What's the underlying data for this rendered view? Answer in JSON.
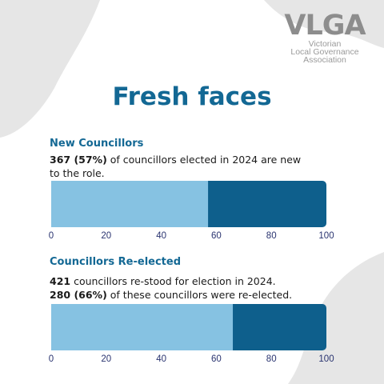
{
  "logo": {
    "mark": "VLGA",
    "line1": "Victorian",
    "line2": "Local Governance",
    "line3": "Association"
  },
  "title": "Fresh faces",
  "sections": [
    {
      "heading": "New Councillors",
      "lines": [
        {
          "bold": "367 (57%)",
          "text": " of councillors elected in 2024 are new"
        },
        {
          "bold": "",
          "text": "to the role."
        }
      ]
    },
    {
      "heading": "Councillors Re-elected",
      "lines": [
        {
          "bold": "421",
          "text": " councillors re-stood for election in 2024."
        },
        {
          "bold": "280 (66%)",
          "text": " of these councillors were re-elected."
        }
      ]
    }
  ],
  "colors": {
    "title": "#136894",
    "bar_light": "#86c2e2",
    "bar_dark": "#0e5f8c",
    "axis_text": "#2a3470",
    "background_shape": "#e6e6e6"
  },
  "chart_data": [
    {
      "type": "bar",
      "orientation": "horizontal-stacked",
      "values": [
        57,
        43
      ],
      "xlim": [
        0,
        100
      ],
      "ticks": [
        0,
        20,
        40,
        60,
        80,
        100
      ],
      "grid": false
    },
    {
      "type": "bar",
      "orientation": "horizontal-stacked",
      "values": [
        66,
        34
      ],
      "xlim": [
        0,
        100
      ],
      "ticks": [
        0,
        20,
        40,
        60,
        80,
        100
      ],
      "grid": false
    }
  ]
}
